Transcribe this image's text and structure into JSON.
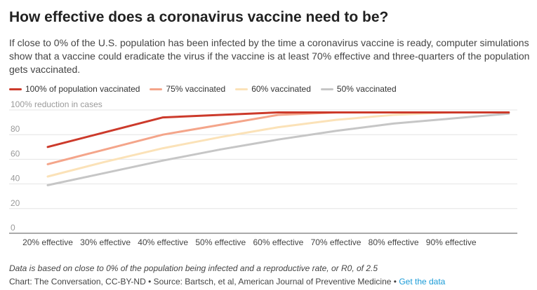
{
  "header": {
    "title": "How effective does a coronavirus vaccine need to be?",
    "subtitle": "If close to 0% of the U.S. population has been infected by the time a coronavirus vaccine is ready, computer simulations show that a vaccine could eradicate the virus if the vaccine is at least 70% effective and three-quarters of the population gets vaccinated."
  },
  "legend": {
    "items": [
      {
        "label": "100% of population vaccinated",
        "color": "#cc3a2b"
      },
      {
        "label": "75% vaccinated",
        "color": "#f4a58a"
      },
      {
        "label": "60% vaccinated",
        "color": "#fbe2b8"
      },
      {
        "label": "50% vaccinated",
        "color": "#c6c6c6"
      }
    ]
  },
  "chart_data": {
    "type": "line",
    "title": "How effective does a coronavirus vaccine need to be?",
    "ylabel": "100% reduction in cases",
    "xlabel": "",
    "y_tick_labels": [
      "0",
      "20",
      "40",
      "60",
      "80",
      "100% reduction in cases"
    ],
    "y_ticks": [
      0,
      20,
      40,
      60,
      80,
      100
    ],
    "ylim": [
      0,
      100
    ],
    "x": [
      20,
      30,
      40,
      50,
      60,
      70,
      80,
      90,
      100
    ],
    "x_tick_labels": [
      "20% effective",
      "30% effective",
      "40% effective",
      "50% effective",
      "60% effective",
      "70% effective",
      "80% effective",
      "90% effective"
    ],
    "grid": true,
    "series": [
      {
        "name": "50% vaccinated",
        "color": "#c6c6c6",
        "values": [
          39,
          49,
          59,
          68,
          76,
          83,
          89,
          93,
          97
        ]
      },
      {
        "name": "60% vaccinated",
        "color": "#fbe2b8",
        "values": [
          46,
          58,
          69,
          78,
          86,
          92,
          96,
          98,
          98
        ]
      },
      {
        "name": "75% vaccinated",
        "color": "#f4a58a",
        "values": [
          56,
          68,
          80,
          88,
          96,
          98,
          98,
          98,
          98
        ]
      },
      {
        "name": "100% of population vaccinated",
        "color": "#cc3a2b",
        "values": [
          70,
          82,
          94,
          96,
          98,
          98,
          98,
          98,
          98
        ]
      }
    ]
  },
  "footer": {
    "notes": "Data is based on close to 0% of the population being infected and a reproductive rate, or R0, of 2.5",
    "credit": "Chart: The Conversation, CC-BY-ND • Source: Bartsch, et al, American Journal of Preventive Medicine • ",
    "get_data": "Get the data"
  }
}
